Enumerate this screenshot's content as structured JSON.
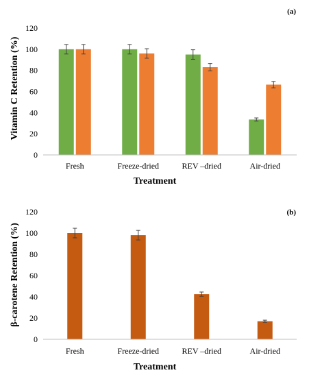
{
  "chart_data": [
    {
      "type": "bar",
      "panel_label": "(a)",
      "title": "",
      "xlabel": "Treatment",
      "ylabel": "Vitamin C Retention  (%)",
      "ylim": [
        0,
        120
      ],
      "yticks": [
        0,
        20,
        40,
        60,
        80,
        100,
        120
      ],
      "grid": false,
      "categories": [
        "Fresh",
        "Freeze-dried",
        "REV –dried",
        "Air-dried"
      ],
      "series": [
        {
          "color": "#70ad47",
          "values": [
            100,
            100,
            95,
            33.5
          ],
          "errors": [
            4.5,
            4.5,
            4.5,
            1.5
          ]
        },
        {
          "color": "#ed7d31",
          "values": [
            100,
            96,
            83,
            66.5
          ],
          "errors": [
            4.5,
            4.5,
            3.5,
            3
          ]
        }
      ]
    },
    {
      "type": "bar",
      "panel_label": "(b)",
      "title": "",
      "xlabel": "Treatment",
      "ylabel": "β-carotene Retention  (%)",
      "ylim": [
        0,
        120
      ],
      "yticks": [
        0,
        20,
        40,
        60,
        80,
        100,
        120
      ],
      "grid": false,
      "categories": [
        "Fresh",
        "Freeze-dried",
        "REV –dried",
        "Air-dried"
      ],
      "series": [
        {
          "color": "#c55a11",
          "values": [
            100,
            98,
            42.5,
            17
          ],
          "errors": [
            4.5,
            4.5,
            2,
            1
          ]
        }
      ]
    }
  ]
}
